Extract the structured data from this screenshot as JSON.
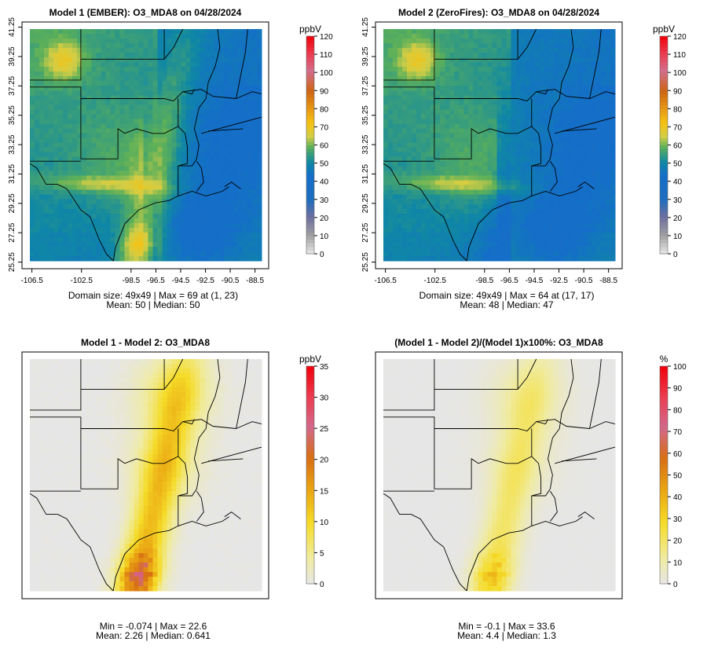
{
  "chart_data": [
    {
      "type": "heatmap",
      "title": "Model 1 (EMBER): O3_MDA8 on 04/28/2024",
      "field": "ember",
      "xlabel": "",
      "ylabel": "",
      "x_ticks": [
        "-106.5",
        "-102.5",
        "-98.5",
        "-96.5",
        "-94.5",
        "-92.5",
        "-90.5",
        "-88.5"
      ],
      "x_tick_values": [
        -106.5,
        -102.5,
        -98.5,
        -96.5,
        -94.5,
        -92.5,
        -90.5,
        -88.5
      ],
      "y_ticks": [
        "25.25",
        "27.25",
        "29.25",
        "31.25",
        "33.25",
        "35.25",
        "37.25",
        "39.25",
        "41.25"
      ],
      "y_tick_values": [
        25.25,
        27.25,
        29.25,
        31.25,
        33.25,
        35.25,
        37.25,
        39.25,
        41.25
      ],
      "xlim": [
        -107.3,
        -87.4
      ],
      "ylim": [
        24.8,
        41.6
      ],
      "colorbar": {
        "unit": "ppbV",
        "min": 0,
        "max": 120,
        "ticks": [
          "0",
          "10",
          "20",
          "30",
          "40",
          "50",
          "60",
          "70",
          "80",
          "90",
          "100",
          "110",
          "120"
        ],
        "tick_values": [
          0,
          10,
          20,
          30,
          40,
          50,
          60,
          70,
          80,
          90,
          100,
          110,
          120
        ],
        "palette": "ozone"
      },
      "stats": [
        "Domain size: 49x49 | Max = 69 at (1, 23)",
        "Mean: 50 |  Median: 50"
      ]
    },
    {
      "type": "heatmap",
      "title": "Model 2 (ZeroFires): O3_MDA8 on 04/28/2024",
      "field": "zero",
      "xlabel": "",
      "ylabel": "",
      "x_ticks": [
        "-106.5",
        "-102.5",
        "-98.5",
        "-96.5",
        "-94.5",
        "-92.5",
        "-90.5",
        "-88.5"
      ],
      "x_tick_values": [
        -106.5,
        -102.5,
        -98.5,
        -96.5,
        -94.5,
        -92.5,
        -90.5,
        -88.5
      ],
      "y_ticks": [
        "25.25",
        "27.25",
        "29.25",
        "31.25",
        "33.25",
        "35.25",
        "37.25",
        "39.25",
        "41.25"
      ],
      "y_tick_values": [
        25.25,
        27.25,
        29.25,
        31.25,
        33.25,
        35.25,
        37.25,
        39.25,
        41.25
      ],
      "xlim": [
        -107.3,
        -87.4
      ],
      "ylim": [
        24.8,
        41.6
      ],
      "colorbar": {
        "unit": "ppbV",
        "min": 0,
        "max": 120,
        "ticks": [
          "0",
          "10",
          "20",
          "30",
          "40",
          "50",
          "60",
          "70",
          "80",
          "90",
          "100",
          "110",
          "120"
        ],
        "tick_values": [
          0,
          10,
          20,
          30,
          40,
          50,
          60,
          70,
          80,
          90,
          100,
          110,
          120
        ],
        "palette": "ozone"
      },
      "stats": [
        "Domain size: 49x49 | Max = 64 at (17, 17)",
        "Mean: 48 |  Median: 47"
      ]
    },
    {
      "type": "heatmap",
      "title": "Model 1 - Model 2: O3_MDA8",
      "field": "diff",
      "xlabel": "",
      "ylabel": "",
      "x_ticks": [],
      "x_tick_values": [],
      "y_ticks": [],
      "y_tick_values": [],
      "xlim": [
        -107.3,
        -87.4
      ],
      "ylim": [
        24.8,
        41.6
      ],
      "colorbar": {
        "unit": "ppbV",
        "min": 0,
        "max": 35,
        "ticks": [
          "0",
          "5",
          "10",
          "15",
          "20",
          "25",
          "30",
          "35"
        ],
        "tick_values": [
          0,
          5,
          10,
          15,
          20,
          25,
          30,
          35
        ],
        "palette": "warm"
      },
      "stats": [
        "Min = -0.074 | Max = 22.6",
        "Mean: 2.26 |  Median: 0.641"
      ]
    },
    {
      "type": "heatmap",
      "title": "(Model 1 - Model 2)/(Model 1)x100%: O3_MDA8",
      "field": "pct",
      "xlabel": "",
      "ylabel": "",
      "x_ticks": [],
      "x_tick_values": [],
      "y_ticks": [],
      "y_tick_values": [],
      "xlim": [
        -107.3,
        -87.4
      ],
      "ylim": [
        24.8,
        41.6
      ],
      "colorbar": {
        "unit": "%",
        "min": 0,
        "max": 100,
        "ticks": [
          "0",
          "10",
          "20",
          "30",
          "40",
          "50",
          "60",
          "70",
          "80",
          "90",
          "100"
        ],
        "tick_values": [
          0,
          10,
          20,
          30,
          40,
          50,
          60,
          70,
          80,
          90,
          100
        ],
        "palette": "warm"
      },
      "stats": [
        "Min = -0.1 | Max = 33.6",
        "Mean: 4.4 |  Median: 1.3"
      ]
    }
  ]
}
